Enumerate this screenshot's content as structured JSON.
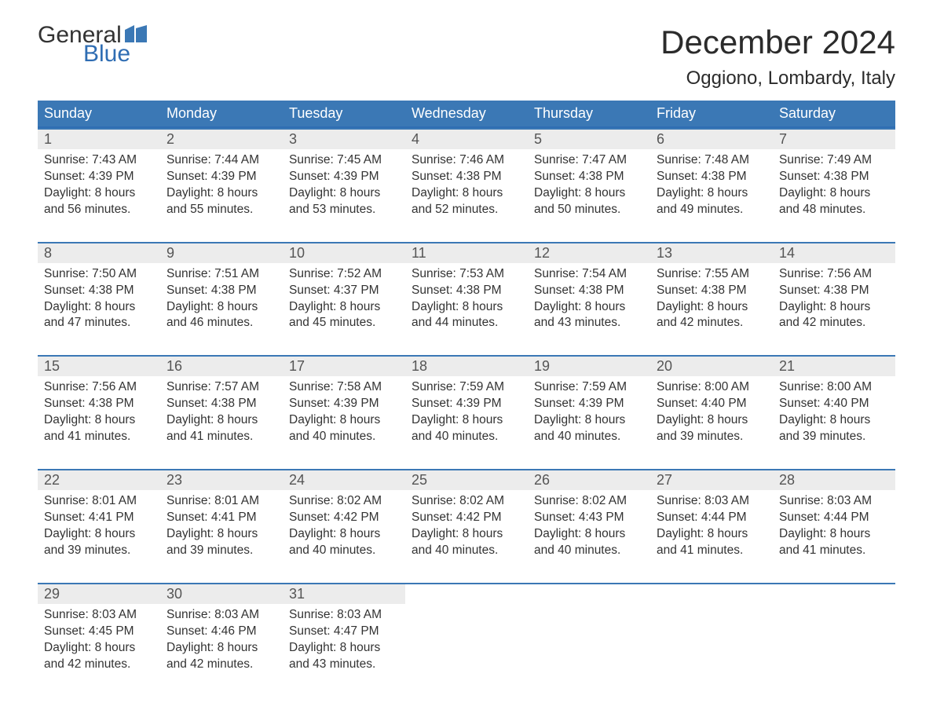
{
  "logo": {
    "text_general": "General",
    "text_blue": "Blue",
    "flag_color": "#3b78b5",
    "text_color_dark": "#333333",
    "text_color_blue": "#2f6db3"
  },
  "header": {
    "month_title": "December 2024",
    "location": "Oggiono, Lombardy, Italy"
  },
  "colors": {
    "header_bg": "#3b78b5",
    "header_text": "#ffffff",
    "row_divider": "#3b78b5",
    "daynum_bg": "#ececec",
    "daynum_text": "#555555",
    "body_text": "#333333",
    "page_bg": "#ffffff"
  },
  "typography": {
    "month_title_fontsize": 42,
    "location_fontsize": 24,
    "dow_fontsize": 18,
    "daynum_fontsize": 18,
    "body_fontsize": 15.5,
    "font_family": "Arial"
  },
  "calendar": {
    "days_of_week": [
      "Sunday",
      "Monday",
      "Tuesday",
      "Wednesday",
      "Thursday",
      "Friday",
      "Saturday"
    ],
    "labels": {
      "sunrise": "Sunrise:",
      "sunset": "Sunset:",
      "daylight": "Daylight:"
    },
    "weeks": [
      [
        {
          "day": "1",
          "sunrise": "7:43 AM",
          "sunset": "4:39 PM",
          "daylight": "8 hours and 56 minutes."
        },
        {
          "day": "2",
          "sunrise": "7:44 AM",
          "sunset": "4:39 PM",
          "daylight": "8 hours and 55 minutes."
        },
        {
          "day": "3",
          "sunrise": "7:45 AM",
          "sunset": "4:39 PM",
          "daylight": "8 hours and 53 minutes."
        },
        {
          "day": "4",
          "sunrise": "7:46 AM",
          "sunset": "4:38 PM",
          "daylight": "8 hours and 52 minutes."
        },
        {
          "day": "5",
          "sunrise": "7:47 AM",
          "sunset": "4:38 PM",
          "daylight": "8 hours and 50 minutes."
        },
        {
          "day": "6",
          "sunrise": "7:48 AM",
          "sunset": "4:38 PM",
          "daylight": "8 hours and 49 minutes."
        },
        {
          "day": "7",
          "sunrise": "7:49 AM",
          "sunset": "4:38 PM",
          "daylight": "8 hours and 48 minutes."
        }
      ],
      [
        {
          "day": "8",
          "sunrise": "7:50 AM",
          "sunset": "4:38 PM",
          "daylight": "8 hours and 47 minutes."
        },
        {
          "day": "9",
          "sunrise": "7:51 AM",
          "sunset": "4:38 PM",
          "daylight": "8 hours and 46 minutes."
        },
        {
          "day": "10",
          "sunrise": "7:52 AM",
          "sunset": "4:37 PM",
          "daylight": "8 hours and 45 minutes."
        },
        {
          "day": "11",
          "sunrise": "7:53 AM",
          "sunset": "4:38 PM",
          "daylight": "8 hours and 44 minutes."
        },
        {
          "day": "12",
          "sunrise": "7:54 AM",
          "sunset": "4:38 PM",
          "daylight": "8 hours and 43 minutes."
        },
        {
          "day": "13",
          "sunrise": "7:55 AM",
          "sunset": "4:38 PM",
          "daylight": "8 hours and 42 minutes."
        },
        {
          "day": "14",
          "sunrise": "7:56 AM",
          "sunset": "4:38 PM",
          "daylight": "8 hours and 42 minutes."
        }
      ],
      [
        {
          "day": "15",
          "sunrise": "7:56 AM",
          "sunset": "4:38 PM",
          "daylight": "8 hours and 41 minutes."
        },
        {
          "day": "16",
          "sunrise": "7:57 AM",
          "sunset": "4:38 PM",
          "daylight": "8 hours and 41 minutes."
        },
        {
          "day": "17",
          "sunrise": "7:58 AM",
          "sunset": "4:39 PM",
          "daylight": "8 hours and 40 minutes."
        },
        {
          "day": "18",
          "sunrise": "7:59 AM",
          "sunset": "4:39 PM",
          "daylight": "8 hours and 40 minutes."
        },
        {
          "day": "19",
          "sunrise": "7:59 AM",
          "sunset": "4:39 PM",
          "daylight": "8 hours and 40 minutes."
        },
        {
          "day": "20",
          "sunrise": "8:00 AM",
          "sunset": "4:40 PM",
          "daylight": "8 hours and 39 minutes."
        },
        {
          "day": "21",
          "sunrise": "8:00 AM",
          "sunset": "4:40 PM",
          "daylight": "8 hours and 39 minutes."
        }
      ],
      [
        {
          "day": "22",
          "sunrise": "8:01 AM",
          "sunset": "4:41 PM",
          "daylight": "8 hours and 39 minutes."
        },
        {
          "day": "23",
          "sunrise": "8:01 AM",
          "sunset": "4:41 PM",
          "daylight": "8 hours and 39 minutes."
        },
        {
          "day": "24",
          "sunrise": "8:02 AM",
          "sunset": "4:42 PM",
          "daylight": "8 hours and 40 minutes."
        },
        {
          "day": "25",
          "sunrise": "8:02 AM",
          "sunset": "4:42 PM",
          "daylight": "8 hours and 40 minutes."
        },
        {
          "day": "26",
          "sunrise": "8:02 AM",
          "sunset": "4:43 PM",
          "daylight": "8 hours and 40 minutes."
        },
        {
          "day": "27",
          "sunrise": "8:03 AM",
          "sunset": "4:44 PM",
          "daylight": "8 hours and 41 minutes."
        },
        {
          "day": "28",
          "sunrise": "8:03 AM",
          "sunset": "4:44 PM",
          "daylight": "8 hours and 41 minutes."
        }
      ],
      [
        {
          "day": "29",
          "sunrise": "8:03 AM",
          "sunset": "4:45 PM",
          "daylight": "8 hours and 42 minutes."
        },
        {
          "day": "30",
          "sunrise": "8:03 AM",
          "sunset": "4:46 PM",
          "daylight": "8 hours and 42 minutes."
        },
        {
          "day": "31",
          "sunrise": "8:03 AM",
          "sunset": "4:47 PM",
          "daylight": "8 hours and 43 minutes."
        },
        null,
        null,
        null,
        null
      ]
    ]
  }
}
